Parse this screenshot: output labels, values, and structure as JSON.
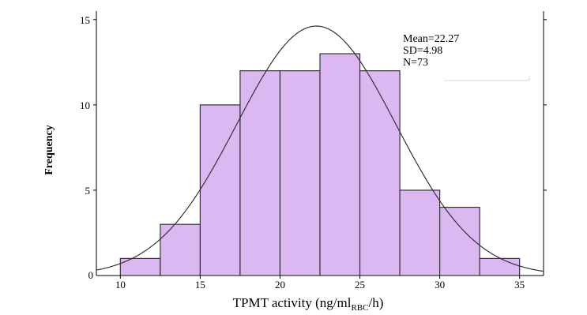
{
  "chart_data": {
    "type": "bar",
    "subtype": "histogram",
    "bin_edges": [
      10,
      12.5,
      15,
      17.5,
      20,
      22.5,
      25,
      27.5,
      30,
      32.5,
      35
    ],
    "values": [
      1,
      3,
      10,
      12,
      12,
      13,
      12,
      5,
      4,
      1
    ],
    "xlim": [
      8.5,
      36.5
    ],
    "ylim": [
      0,
      15.5
    ],
    "xticks": [
      10,
      15,
      20,
      25,
      30,
      35
    ],
    "yticks": [
      5,
      10,
      15
    ],
    "y_zero_tick": "0",
    "xlabel_main": "TPMT activity (ng/ml",
    "xlabel_sub": "RBC",
    "xlabel_tail": "/h)",
    "ylabel": "Frequency",
    "stats": [
      "Mean=22.27",
      "SD=4.98",
      "N=73"
    ],
    "normal_curve": {
      "mean": 22.27,
      "sd": 4.98,
      "n": 73,
      "bin_width": 2.5
    },
    "bar_color": "#dcb8f2",
    "edge_color": "#333333",
    "curve_color": "#333333",
    "grid": false
  }
}
